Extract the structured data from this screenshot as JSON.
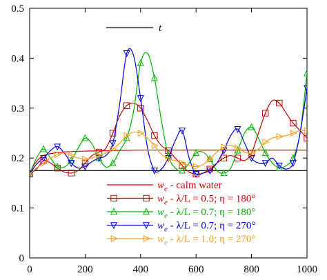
{
  "chart_data": {
    "type": "line",
    "title": "",
    "xlabel": "",
    "ylabel": "",
    "xlim": [
      0,
      1000
    ],
    "ylim": [
      0,
      0.5
    ],
    "grid": false,
    "x_ticks": [
      "0",
      "200",
      "400",
      "600",
      "800",
      "1000"
    ],
    "y_ticks": [
      "0",
      "0.1",
      "0.2",
      "0.3",
      "0.4",
      "0.5"
    ],
    "top_legend": {
      "label": "t",
      "color": "#000000",
      "values": [
        0.175,
        0.175
      ]
    },
    "legend_position": "lower-right",
    "series": [
      {
        "name": "we - calm water",
        "label_main": "w",
        "label_sub": "e",
        "label_rest": " - calm water",
        "color": "#d00000",
        "marker": "none",
        "x": [
          0,
          20,
          50,
          100,
          150,
          200,
          300,
          400,
          500,
          600,
          700,
          800,
          900,
          1000
        ],
        "y": [
          0.168,
          0.19,
          0.205,
          0.211,
          0.213,
          0.214,
          0.215,
          0.216,
          0.216,
          0.216,
          0.216,
          0.216,
          0.216,
          0.216
        ]
      },
      {
        "name": "we - λ/L = 0.5; η = 180°",
        "label_main": "w",
        "label_sub": "e",
        "label_rest": " - λ/L = 0.5; η = 180°",
        "color": "#c80000",
        "marker": "square",
        "x": [
          0,
          25,
          50,
          75,
          100,
          125,
          150,
          175,
          200,
          225,
          250,
          275,
          300,
          325,
          350,
          375,
          400,
          425,
          450,
          475,
          500,
          525,
          550,
          575,
          600,
          625,
          650,
          675,
          700,
          725,
          750,
          775,
          800,
          825,
          850,
          875,
          900,
          925,
          950,
          975,
          1000
        ],
        "y": [
          0.168,
          0.178,
          0.195,
          0.19,
          0.18,
          0.172,
          0.17,
          0.175,
          0.19,
          0.205,
          0.212,
          0.22,
          0.25,
          0.285,
          0.305,
          0.31,
          0.3,
          0.275,
          0.245,
          0.225,
          0.215,
          0.2,
          0.185,
          0.172,
          0.168,
          0.17,
          0.178,
          0.19,
          0.2,
          0.205,
          0.2,
          0.195,
          0.21,
          0.25,
          0.29,
          0.315,
          0.31,
          0.29,
          0.27,
          0.255,
          0.24
        ]
      },
      {
        "name": "we - λ/L = 0.7; η = 180°",
        "label_main": "w",
        "label_sub": "e",
        "label_rest": " - λ/L = 0.7; η = 180°",
        "color": "#00b400",
        "marker": "triangle-up",
        "x": [
          0,
          25,
          50,
          75,
          100,
          125,
          150,
          175,
          200,
          225,
          250,
          275,
          300,
          325,
          350,
          375,
          400,
          425,
          450,
          475,
          500,
          525,
          550,
          575,
          600,
          625,
          650,
          675,
          700,
          725,
          750,
          775,
          800,
          825,
          850,
          875,
          900,
          925,
          950,
          975,
          1000
        ],
        "y": [
          0.168,
          0.2,
          0.218,
          0.2,
          0.183,
          0.182,
          0.195,
          0.22,
          0.24,
          0.228,
          0.2,
          0.182,
          0.19,
          0.215,
          0.24,
          0.295,
          0.39,
          0.41,
          0.36,
          0.275,
          0.205,
          0.18,
          0.175,
          0.19,
          0.21,
          0.212,
          0.198,
          0.175,
          0.17,
          0.18,
          0.215,
          0.25,
          0.262,
          0.24,
          0.21,
          0.19,
          0.18,
          0.185,
          0.2,
          0.25,
          0.37
        ]
      },
      {
        "name": "we - λ/L = 0.7; η = 270°",
        "label_main": "w",
        "label_sub": "e",
        "label_rest": " - λ/L = 0.7; η = 270°",
        "color": "#0000e0",
        "marker": "triangle-down",
        "x": [
          0,
          25,
          50,
          75,
          100,
          125,
          150,
          175,
          200,
          225,
          250,
          275,
          300,
          325,
          350,
          375,
          400,
          425,
          450,
          475,
          500,
          525,
          550,
          575,
          600,
          625,
          650,
          675,
          700,
          725,
          750,
          775,
          800,
          825,
          850,
          875,
          900,
          925,
          950,
          975,
          1000
        ],
        "y": [
          0.168,
          0.188,
          0.2,
          0.215,
          0.223,
          0.21,
          0.19,
          0.18,
          0.183,
          0.193,
          0.2,
          0.205,
          0.23,
          0.31,
          0.41,
          0.405,
          0.32,
          0.22,
          0.175,
          0.178,
          0.2,
          0.235,
          0.255,
          0.2,
          0.168,
          0.17,
          0.175,
          0.19,
          0.215,
          0.245,
          0.258,
          0.23,
          0.2,
          0.19,
          0.19,
          0.2,
          0.185,
          0.178,
          0.19,
          0.25,
          0.34
        ]
      },
      {
        "name": "we - λ/L = 1.0; η = 270°",
        "label_main": "w",
        "label_sub": "e",
        "label_rest": " - λ/L = 1.0; η = 270°",
        "color": "#f0a020",
        "marker": "triangle-right",
        "x": [
          0,
          25,
          50,
          75,
          100,
          125,
          150,
          175,
          200,
          225,
          250,
          275,
          300,
          325,
          350,
          375,
          400,
          425,
          450,
          475,
          500,
          525,
          550,
          575,
          600,
          625,
          650,
          675,
          700,
          725,
          750,
          775,
          800,
          825,
          850,
          875,
          900,
          925,
          950,
          975,
          1000
        ],
        "y": [
          0.168,
          0.18,
          0.19,
          0.2,
          0.207,
          0.21,
          0.205,
          0.2,
          0.198,
          0.2,
          0.205,
          0.21,
          0.218,
          0.23,
          0.245,
          0.252,
          0.25,
          0.24,
          0.225,
          0.208,
          0.198,
          0.195,
          0.19,
          0.185,
          0.183,
          0.187,
          0.198,
          0.212,
          0.222,
          0.225,
          0.22,
          0.212,
          0.21,
          0.218,
          0.232,
          0.24,
          0.243,
          0.245,
          0.25,
          0.255,
          0.255
        ]
      }
    ]
  }
}
